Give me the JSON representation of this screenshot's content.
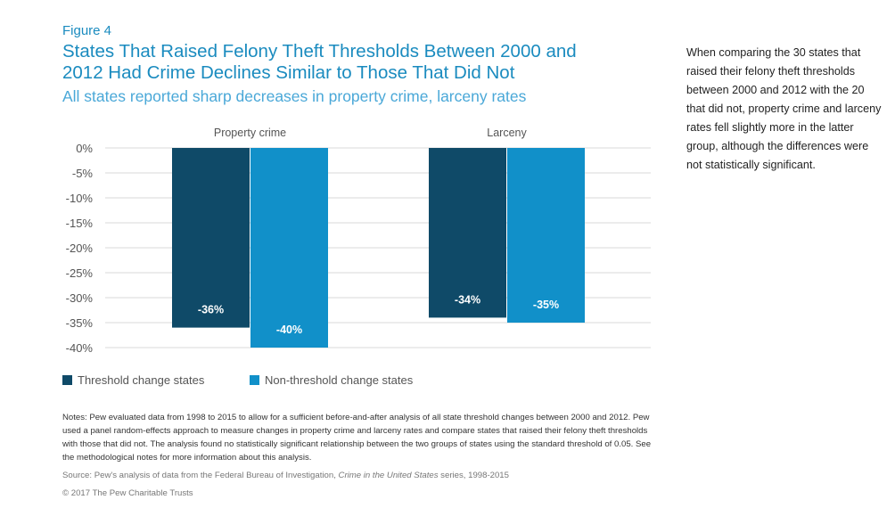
{
  "figure_label": "Figure 4",
  "title_lines": [
    "States That Raised Felony Theft Thresholds Between 2000 and",
    "2012 Had Crime Declines Similar to Those That Did Not"
  ],
  "subtitle": "All states reported sharp decreases in property crime, larceny rates",
  "side_note": "When comparing the 30 states that raised their felony theft thresholds between 2000 and 2012 with the 20 that did not, property crime and larceny rates fell slightly more in the latter group, although the differences were not statistically significant.",
  "notes": "Notes: Pew evaluated data from 1998 to 2015 to allow for a sufficient before-and-after analysis of all state threshold changes between 2000 and 2012. Pew used a panel random-effects approach to measure changes in property crime and larceny rates and compare states that raised their felony theft thresholds with those that did not. The analysis found no statistically significant relationship between the two groups of states using the standard threshold of 0.05. See the methodological notes for more information about this analysis.",
  "source": {
    "prefix": "Source: Pew's analysis of data from the Federal Bureau of Investigation, ",
    "italic": "Crime in the United States",
    "suffix": " series, 1998-2015"
  },
  "copyright": "© 2017 The Pew Charitable Trusts",
  "colors": {
    "threshold": "#0f4a68",
    "non_threshold": "#1190c9",
    "grid": "#d9d9d9",
    "tick_text": "#555555"
  },
  "chart_data": {
    "type": "bar",
    "categories": [
      "Property crime",
      "Larceny"
    ],
    "series": [
      {
        "name": "Threshold change states",
        "values": [
          -36,
          -34
        ],
        "labels": [
          "-36%",
          "-34%"
        ]
      },
      {
        "name": "Non-threshold change states",
        "values": [
          -40,
          -35
        ],
        "labels": [
          "-40%",
          "-35%"
        ]
      }
    ],
    "ylim": [
      -40,
      0
    ],
    "yticks": [
      0,
      -5,
      -10,
      -15,
      -20,
      -25,
      -30,
      -35,
      -40
    ],
    "ytick_labels": [
      "0%",
      "-5%",
      "-10%",
      "-15%",
      "-20%",
      "-25%",
      "-30%",
      "-35%",
      "-40%"
    ],
    "grid": true,
    "legend": "bottom-left"
  }
}
